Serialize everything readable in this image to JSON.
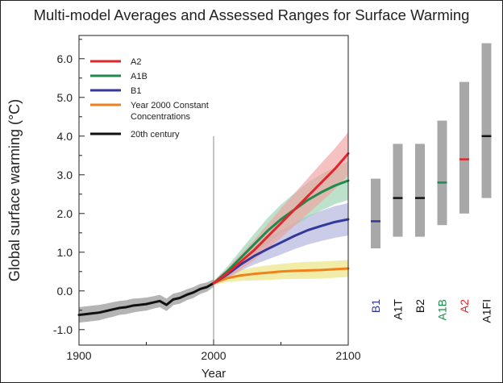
{
  "chart_data": {
    "title": "Multi-model Averages and Assessed Ranges for Surface Warming",
    "type": "line",
    "xlabel": "Year",
    "ylabel": "Global surface warming (°C)",
    "xlim": [
      1900,
      2100
    ],
    "ylim": [
      -1.4,
      6.6
    ],
    "x_ticks": [
      "1900",
      "2000",
      "2100"
    ],
    "y_ticks": [
      "-1.0",
      "0.0",
      "1.0",
      "2.0",
      "3.0",
      "4.0",
      "5.0",
      "6.0"
    ],
    "vertical_marker_x": 2000,
    "legend_position": "top-left",
    "legend": [
      {
        "label": "A2",
        "color": "#e0262b"
      },
      {
        "label": "A1B",
        "color": "#1f8a4c"
      },
      {
        "label": "B1",
        "color": "#33389a"
      },
      {
        "label": "Year 2000 Constant",
        "label2": "Concentrations",
        "color": "#f0821e"
      },
      {
        "label": "20th century",
        "color": "#111111"
      }
    ],
    "series": [
      {
        "name": "20th century",
        "color": "#111111",
        "band_color": "#8c8c8c",
        "x": [
          1900,
          1905,
          1910,
          1915,
          1920,
          1925,
          1930,
          1935,
          1940,
          1945,
          1950,
          1955,
          1960,
          1965,
          1970,
          1975,
          1980,
          1985,
          1990,
          1995,
          2000
        ],
        "y": [
          -0.62,
          -0.6,
          -0.58,
          -0.56,
          -0.52,
          -0.48,
          -0.44,
          -0.42,
          -0.38,
          -0.36,
          -0.34,
          -0.3,
          -0.26,
          -0.36,
          -0.22,
          -0.18,
          -0.1,
          -0.04,
          0.05,
          0.1,
          0.2
        ],
        "band": [
          0.2,
          0.2,
          0.2,
          0.2,
          0.19,
          0.19,
          0.18,
          0.18,
          0.18,
          0.17,
          0.17,
          0.16,
          0.16,
          0.16,
          0.15,
          0.15,
          0.14,
          0.14,
          0.13,
          0.12,
          0.1
        ]
      },
      {
        "name": "A2",
        "color": "#e0262b",
        "band_color": "#f0a0a0",
        "x": [
          2000,
          2010,
          2020,
          2030,
          2040,
          2050,
          2060,
          2070,
          2080,
          2090,
          2100
        ],
        "y": [
          0.2,
          0.45,
          0.75,
          1.05,
          1.4,
          1.75,
          2.1,
          2.45,
          2.8,
          3.15,
          3.55
        ],
        "band": [
          0.05,
          0.12,
          0.2,
          0.26,
          0.32,
          0.38,
          0.42,
          0.46,
          0.5,
          0.53,
          0.55
        ]
      },
      {
        "name": "A1B",
        "color": "#1f8a4c",
        "band_color": "#9ad3b1",
        "x": [
          2000,
          2010,
          2020,
          2030,
          2040,
          2050,
          2060,
          2070,
          2080,
          2090,
          2100
        ],
        "y": [
          0.2,
          0.5,
          0.85,
          1.2,
          1.55,
          1.85,
          2.1,
          2.35,
          2.55,
          2.72,
          2.85
        ],
        "band": [
          0.05,
          0.12,
          0.2,
          0.27,
          0.33,
          0.38,
          0.42,
          0.45,
          0.47,
          0.48,
          0.5
        ]
      },
      {
        "name": "B1",
        "color": "#33389a",
        "band_color": "#aeb1dc",
        "x": [
          2000,
          2010,
          2020,
          2030,
          2040,
          2050,
          2060,
          2070,
          2080,
          2090,
          2100
        ],
        "y": [
          0.2,
          0.42,
          0.68,
          0.9,
          1.08,
          1.25,
          1.42,
          1.57,
          1.68,
          1.78,
          1.85
        ],
        "band": [
          0.05,
          0.1,
          0.16,
          0.22,
          0.27,
          0.31,
          0.34,
          0.37,
          0.39,
          0.41,
          0.42
        ]
      },
      {
        "name": "Year 2000 Constant Concentrations",
        "color": "#f0821e",
        "band_color": "#eae37a",
        "x": [
          2000,
          2010,
          2020,
          2030,
          2040,
          2050,
          2060,
          2070,
          2080,
          2090,
          2100
        ],
        "y": [
          0.2,
          0.33,
          0.4,
          0.44,
          0.47,
          0.5,
          0.52,
          0.53,
          0.54,
          0.56,
          0.58
        ],
        "band": [
          0.05,
          0.1,
          0.14,
          0.17,
          0.19,
          0.2,
          0.21,
          0.22,
          0.22,
          0.22,
          0.22
        ]
      }
    ],
    "ranges": [
      {
        "label": "B1",
        "low": 1.1,
        "high": 2.9,
        "best": 1.8,
        "color": "#33389a"
      },
      {
        "label": "A1T",
        "low": 1.4,
        "high": 3.8,
        "best": 2.4,
        "color": "#111111"
      },
      {
        "label": "B2",
        "low": 1.4,
        "high": 3.8,
        "best": 2.4,
        "color": "#111111"
      },
      {
        "label": "A1B",
        "low": 1.7,
        "high": 4.4,
        "best": 2.8,
        "color": "#1f8a4c"
      },
      {
        "label": "A2",
        "low": 2.0,
        "high": 5.4,
        "best": 3.4,
        "color": "#e0262b"
      },
      {
        "label": "A1FI",
        "low": 2.4,
        "high": 6.4,
        "best": 4.0,
        "color": "#111111"
      }
    ],
    "range_bar_color": "#a8a8a8",
    "grid": false
  }
}
